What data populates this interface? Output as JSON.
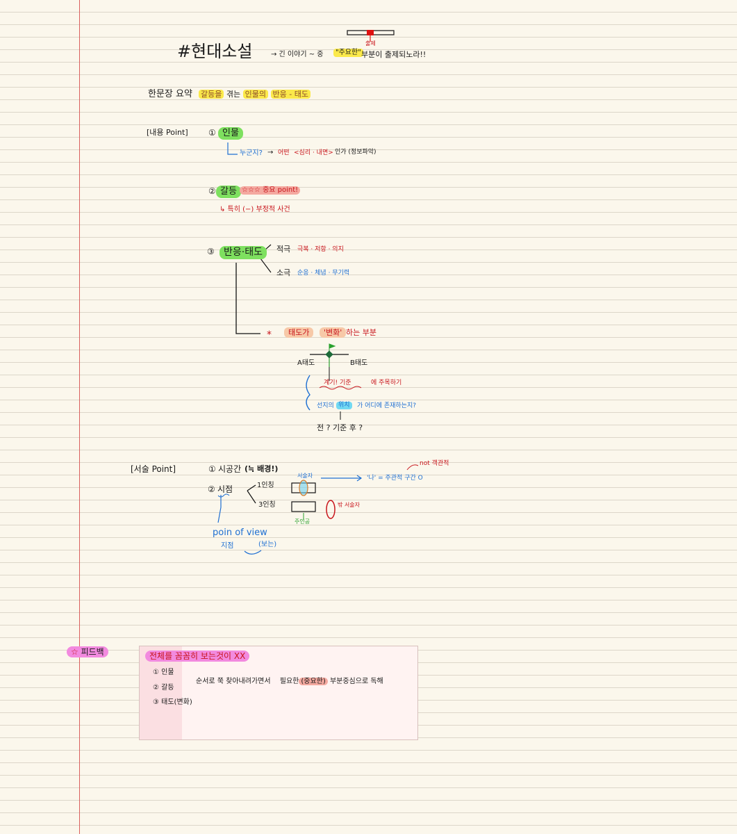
{
  "header": {
    "title": "#현대소설",
    "subtitle": "→ 긴 이야기 ~ 중",
    "key_word": "\"주요한\"",
    "annotation_top": "출제",
    "annotation_main": "부분이 출제되노라!!"
  },
  "summary": {
    "label": "한문장 요약",
    "part1": "갈등을",
    "part2": "겪는",
    "part3": "인물의",
    "part4": "반응 - 태도"
  },
  "content_point": {
    "label": "[내용 Point]",
    "item1": {
      "num": "①",
      "title": "인물",
      "sub_q": "누군지?",
      "sub_arrow": "→",
      "sub_text1": "어떤",
      "sub_text2": "<심리 · 내면>",
      "sub_text3": "인가 (정보파악)"
    },
    "item2": {
      "num": "②",
      "title": "갈등",
      "note": "☆☆☆ 중요 point!",
      "sub": "↳ 특히 (−) 부정적 사건"
    },
    "item3": {
      "num": "③",
      "title": "반응·태도",
      "branch1_label": "적극",
      "branch1_text": "극복 · 저항 · 의지",
      "branch2_label": "소극",
      "branch2_text": "순응 · 체념 · 무기력",
      "star": "*",
      "change_part1": "태도가",
      "change_part2": "'변화'",
      "change_part3": "하는 부분",
      "attitude_a": "A태도",
      "attitude_b": "B태도",
      "clue1_a": "계기! 기준",
      "clue1_b": "에 주목하기",
      "clue2_a": "선지의",
      "clue2_b": "위치",
      "clue2_c": "가 어디에 존재하는지?",
      "timeline": "전 ? 기준 후 ?"
    }
  },
  "narrative_point": {
    "label": "[서술 Point]",
    "item1_num": "①",
    "item1_title": "시공간",
    "item1_note": "(≒ 배경!)",
    "item2_num": "②",
    "item2_title": "시점",
    "first_person": "1인칭",
    "third_person": "3인칭",
    "narrator": "서술자",
    "na_text": "'나' = 주관적 구간 O",
    "not_objective": "not 객관적",
    "outside_narrator": "밖 서술자",
    "characters": "주인공",
    "pov_en": "poin of view",
    "pov_ko1": "지점",
    "pov_ko2": "(보는)"
  },
  "feedback": {
    "star": "☆",
    "label": "피드백",
    "heading": "전체를 꼼꼼히 보는것이 XX",
    "item1": "① 인물",
    "item2": "② 갈등",
    "item3": "③ 태도(변화)",
    "body_part1": "순서로 쭉 찾아내려가면서",
    "body_part2": "필요한",
    "body_part3": "(중요한)",
    "body_part4": "부분중심으로 독해"
  },
  "colors": {
    "paper": "#fbf7ec",
    "rule": "#dcd6c9",
    "margin": "#d9605e",
    "highlight_yellow": "#fbe94a",
    "highlight_green": "#7ee05f",
    "highlight_pink": "#f28adf",
    "ink_red": "#c8141b",
    "ink_blue": "#1e6fd2"
  }
}
